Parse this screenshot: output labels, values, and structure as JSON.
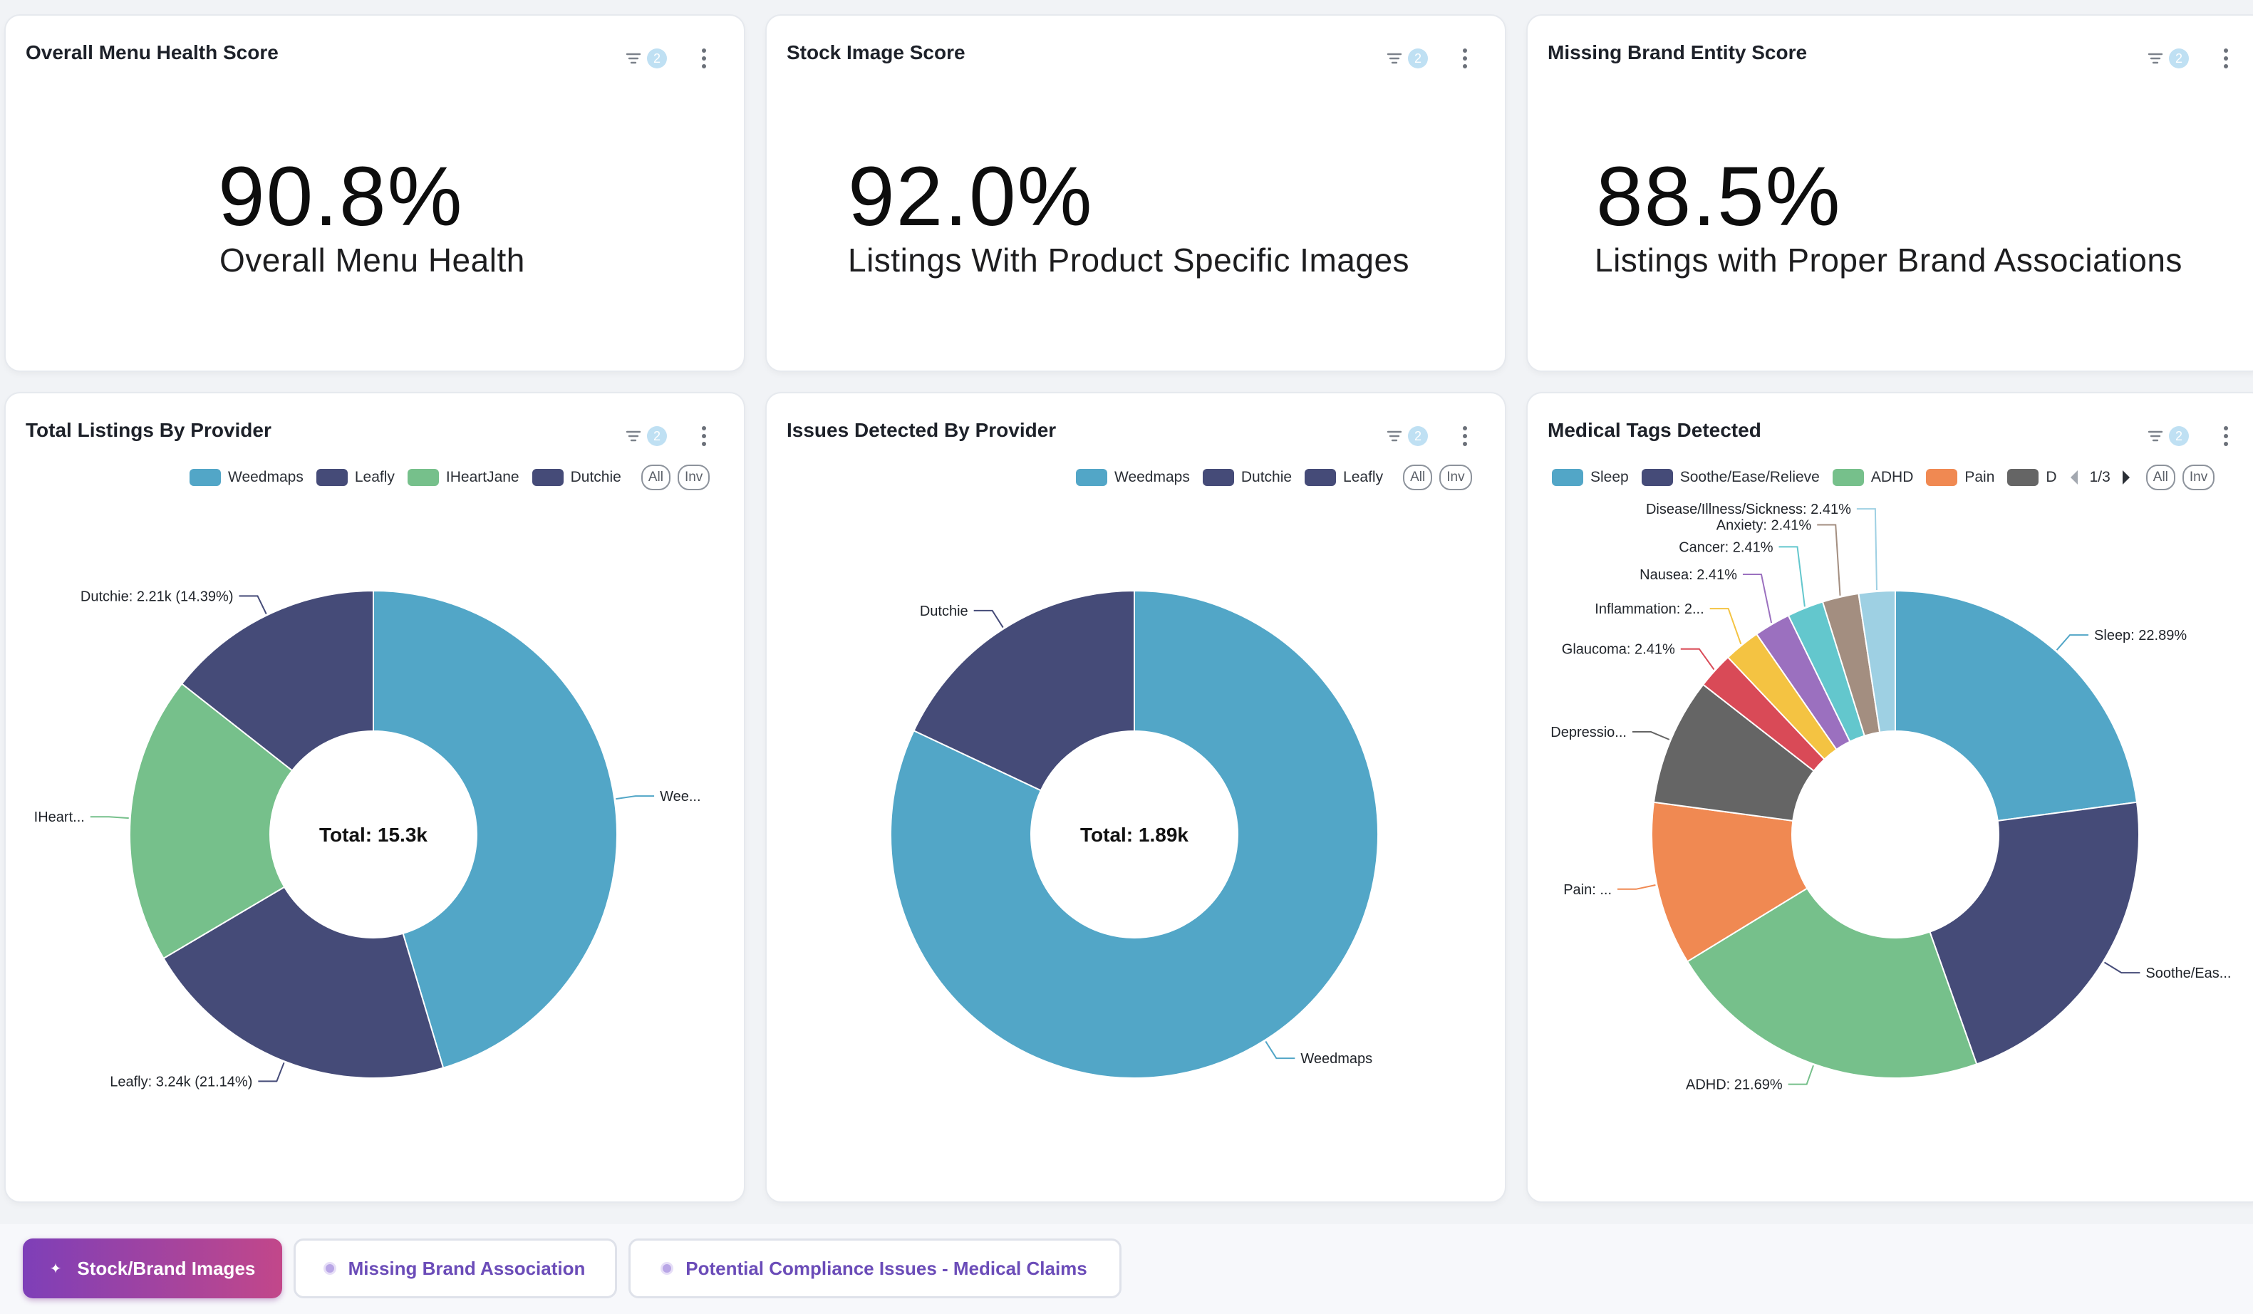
{
  "kpis": [
    {
      "title": "Overall Menu Health Score",
      "badge": "2",
      "value": "90.8%",
      "label": "Overall Menu Health"
    },
    {
      "title": "Stock Image Score",
      "badge": "2",
      "value": "92.0%",
      "label": "Listings With Product Specific Images"
    },
    {
      "title": "Missing Brand Entity Score",
      "badge": "2",
      "value": "88.5%",
      "label": "Listings with Proper Brand Associations"
    }
  ],
  "charts": [
    {
      "title": "Total Listings By Provider",
      "badge": "2",
      "center_label": "Total: 15.3k",
      "all_label": "All",
      "inv_label": "Inv"
    },
    {
      "title": "Issues Detected By Provider",
      "badge": "2",
      "center_label": "Total: 1.89k",
      "all_label": "All",
      "inv_label": "Inv"
    },
    {
      "title": "Medical Tags Detected",
      "badge": "2",
      "center_label": "",
      "all_label": "All",
      "inv_label": "Inv",
      "pager": "1/3"
    }
  ],
  "chart_data": [
    {
      "type": "pie",
      "title": "Total Listings By Provider",
      "center_label": "Total: 15.3k",
      "legend": [
        "Weedmaps",
        "Leafly",
        "IHeartJane",
        "Dutchie"
      ],
      "slices": [
        {
          "name": "Weedmaps",
          "value": 0.4537,
          "color": "#52a6c7",
          "label": "Wee..."
        },
        {
          "name": "Leafly",
          "value": 0.2114,
          "color": "#454b78",
          "label": "Leafly: 3.24k (21.14%)"
        },
        {
          "name": "IHeartJane",
          "value": 0.191,
          "color": "#76c08b",
          "label": "IHeart..."
        },
        {
          "name": "Dutchie",
          "value": 0.1439,
          "color": "#454b78",
          "label": "Dutchie: 2.21k (14.39%)"
        }
      ]
    },
    {
      "type": "pie",
      "title": "Issues Detected By Provider",
      "center_label": "Total: 1.89k",
      "legend": [
        "Weedmaps",
        "Dutchie",
        "Leafly"
      ],
      "slices": [
        {
          "name": "Weedmaps",
          "value": 0.82,
          "color": "#52a6c7",
          "label": "Weedmaps"
        },
        {
          "name": "Dutchie",
          "value": 0.18,
          "color": "#454b78",
          "label": "Dutchie"
        }
      ]
    },
    {
      "type": "pie",
      "title": "Medical Tags Detected",
      "legend": [
        "Sleep",
        "Soothe/Ease/Relieve",
        "ADHD",
        "Pain",
        "D"
      ],
      "slices": [
        {
          "name": "Sleep",
          "value": 22.89,
          "color": "#52a6c7",
          "label": "Sleep: 22.89%"
        },
        {
          "name": "Soothe/Ease/Relieve",
          "value": 21.69,
          "color": "#454b78",
          "label": "Soothe/Eas..."
        },
        {
          "name": "ADHD",
          "value": 21.69,
          "color": "#76c08b",
          "label": "ADHD: 21.69%"
        },
        {
          "name": "Pain",
          "value": 10.84,
          "color": "#f08952",
          "label": "Pain: ..."
        },
        {
          "name": "Depression",
          "value": 8.43,
          "color": "#656565",
          "label": "Depressio..."
        },
        {
          "name": "Glaucoma",
          "value": 2.41,
          "color": "#d94a57",
          "label": "Glaucoma: 2.41%"
        },
        {
          "name": "Inflammation",
          "value": 2.41,
          "color": "#f4c342",
          "label": "Inflammation: 2..."
        },
        {
          "name": "Nausea",
          "value": 2.41,
          "color": "#9b70bf",
          "label": "Nausea: 2.41%"
        },
        {
          "name": "Cancer",
          "value": 2.41,
          "color": "#63c7cd",
          "label": "Cancer: 2.41%"
        },
        {
          "name": "Anxiety",
          "value": 2.41,
          "color": "#a38e80",
          "label": "Anxiety: 2.41%"
        },
        {
          "name": "Disease/Illness/Sickness",
          "value": 2.41,
          "color": "#9ed0e3",
          "label": "Disease/Illness/Sickness: 2.41%"
        }
      ]
    }
  ],
  "legend_colors": {
    "Weedmaps": "#52a6c7",
    "Leafly": "#454b78",
    "IHeartJane": "#76c08b",
    "Dutchie": "#454b78",
    "Sleep": "#52a6c7",
    "Soothe/Ease/Relieve": "#454b78",
    "ADHD": "#76c08b",
    "Pain": "#f08952",
    "D": "#656565"
  },
  "tabs": [
    {
      "label": "Stock/Brand Images",
      "active": true
    },
    {
      "label": "Missing Brand Association",
      "active": false
    },
    {
      "label": "Potential Compliance Issues - Medical Claims",
      "active": false
    }
  ],
  "colors": {
    "accent_gradient_start": "#7e3fb8",
    "accent_gradient_end": "#c2478a",
    "badge": "#bfe0f3"
  }
}
